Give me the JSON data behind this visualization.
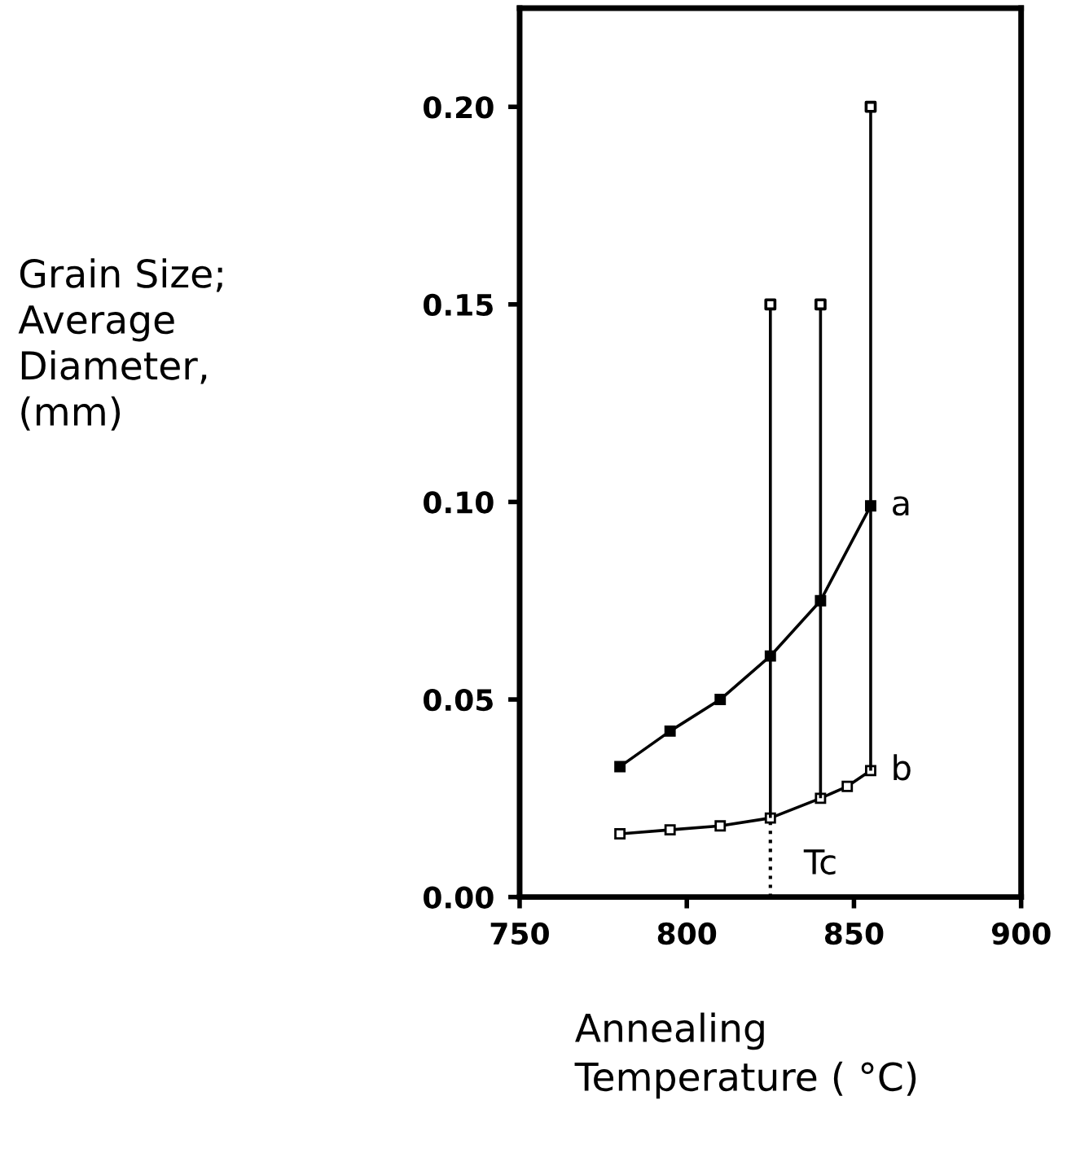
{
  "chart_data": {
    "type": "line",
    "xlabel": "Annealing\nTemperature ( °C)",
    "annotations": [
      "Grain Size;\nAverage\nDiameter,\n(mm)"
    ],
    "series": [
      {
        "name": "a",
        "color": "#000000",
        "marker": "square",
        "x": [
          780,
          795,
          810,
          825,
          840,
          855
        ],
        "values": [
          0.033,
          0.042,
          0.05,
          0.061,
          0.075,
          0.099
        ]
      },
      {
        "name": "b",
        "color": "#000000",
        "marker": "square",
        "x": [
          780,
          795,
          810,
          825,
          840,
          848,
          855
        ],
        "values": [
          0.016,
          0.017,
          0.018,
          0.02,
          0.025,
          0.028,
          0.032
        ],
        "errors": [
          null,
          null,
          null,
          [
            0.02,
            0.15
          ],
          [
            0.025,
            0.15
          ],
          null,
          [
            0.032,
            0.2
          ]
        ]
      },
      {
        "type": "scatter",
        "color": "#000000",
        "marker": "square",
        "x": [
          825,
          840,
          855
        ],
        "values": [
          0.15,
          0.15,
          0.2
        ]
      }
    ],
    "xlim": [
      750,
      900
    ],
    "xticks": [
      750,
      800,
      850,
      900
    ],
    "ylim": [
      0,
      0.225
    ],
    "yticks": [
      {
        "value": 0,
        "label": "0.00"
      },
      {
        "value": 0.05,
        "label": "0.05"
      },
      {
        "value": 0.1,
        "label": "0.10"
      },
      {
        "value": 0.15,
        "label": "0.15"
      },
      {
        "value": 0.2,
        "label": "0.20"
      }
    ],
    "ref_lines": [
      {
        "axis": "x",
        "value": 825,
        "label": "Tc",
        "line_style": "dotted",
        "color": "#000000"
      }
    ],
    "grid": false,
    "legend": false
  }
}
